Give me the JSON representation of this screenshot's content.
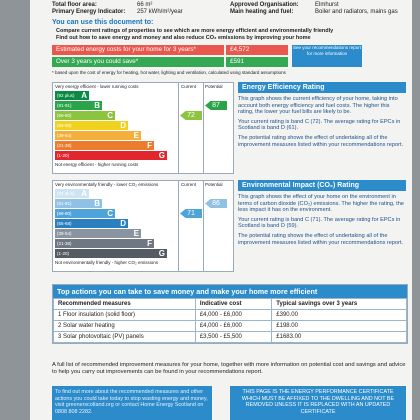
{
  "header": {
    "items": [
      {
        "label": "Total floor area:",
        "value": "66 m²"
      },
      {
        "label": "Primary Energy Indicator:",
        "value": "257 kWh/m²/year"
      },
      {
        "label": "Approved Organisation:",
        "value": "Elmhurst"
      },
      {
        "label": "Main heating and fuel:",
        "value": "Boiler and radiators, mains gas"
      }
    ]
  },
  "use_document": {
    "title": "You can use this document to:",
    "items": [
      "Compare current ratings of properties to see which are more energy efficient and environmentally friendly",
      "Find out how to save energy and money and also reduce CO₂ emissions by improving your home"
    ]
  },
  "costs": {
    "rows": [
      {
        "label": "Estimated energy costs for your home for 3 years*",
        "value": "£4,572",
        "note": "See your recommendations report for more information"
      },
      {
        "label": "Over 3 years you could save*",
        "value": "£591"
      }
    ],
    "footnote": "* based upon the cost of energy for heating, hot water, lighting and ventilation, calculated using standard assumptions"
  },
  "efficiency": {
    "chart": {
      "top": "Very energy efficient - lower running costs",
      "bottom": "Not energy efficient - higher running costs",
      "current_label": "Current",
      "potential_label": "Potential",
      "current": 72,
      "potential": 87,
      "bands": [
        {
          "range": "(92 plus)",
          "letter": "A",
          "color": "#0b8a45"
        },
        {
          "range": "(81-91)",
          "letter": "B",
          "color": "#2aa44a"
        },
        {
          "range": "(69-80)",
          "letter": "C",
          "color": "#8cc43f"
        },
        {
          "range": "(55-68)",
          "letter": "D",
          "color": "#f0d21e"
        },
        {
          "range": "(39-54)",
          "letter": "E",
          "color": "#f4ae3a"
        },
        {
          "range": "(21-38)",
          "letter": "F",
          "color": "#ec7c2d"
        },
        {
          "range": "(1-20)",
          "letter": "G",
          "color": "#e1262d"
        }
      ]
    },
    "title": "Energy Efficiency Rating",
    "paragraphs": [
      "This graph shows the current efficiency of your home, taking into account both energy efficiency and fuel costs. The higher this rating, the lower your fuel bills are likely to be.",
      "Your current rating is band C (72). The average rating for EPCs in Scotland is band D (61).",
      "The potential rating shows the effect of undertaking all of the improvement measures listed within your recommendations report."
    ]
  },
  "impact": {
    "chart": {
      "top": "Very environmentally friendly - lower CO₂ emissions",
      "bottom": "Not environmentally friendly - higher CO₂ emissions",
      "current_label": "Current",
      "potential_label": "Potential",
      "current": 71,
      "potential": 86,
      "bands": [
        {
          "range": "(92 plus)",
          "letter": "A",
          "color": "#cfe3f2"
        },
        {
          "range": "(81-91)",
          "letter": "B",
          "color": "#8fc1e4"
        },
        {
          "range": "(69-80)",
          "letter": "C",
          "color": "#4ea3d8"
        },
        {
          "range": "(55-68)",
          "letter": "D",
          "color": "#2a7fbf"
        },
        {
          "range": "(39-54)",
          "letter": "E",
          "color": "#8a94a0"
        },
        {
          "range": "(21-38)",
          "letter": "F",
          "color": "#6f7782"
        },
        {
          "range": "(1-20)",
          "letter": "G",
          "color": "#555b63"
        }
      ]
    },
    "title": "Environmental Impact (CO₂) Rating",
    "paragraphs": [
      "This graph shows the effect of your home on the environment in terms of carbon dioxide (CO₂) emissions. The higher the rating, the less impact it has on the environment.",
      "Your current rating is band C (71). The average rating for EPCs in Scotland is band D (59).",
      "The potential rating shows the effect of undertaking all of the improvement measures listed within your recommendations report."
    ]
  },
  "actions": {
    "title": "Top actions you can take to save money and make your home more efficient",
    "headers": [
      "Recommended measures",
      "Indicative cost",
      "Typical savings over 3 years"
    ],
    "rows": [
      [
        "1 Floor insulation (solid floor)",
        "£4,000 - £6,000",
        "£390.00"
      ],
      [
        "2 Solar water heating",
        "£4,000 - £6,000",
        "£198.00"
      ],
      [
        "3 Solar photovoltaic (PV) panels",
        "£3,500 - £5,500",
        "£1683.00"
      ]
    ]
  },
  "footer": {
    "text": "A full list of recommended improvement measures for your home, together with more information on potential cost and savings and advice to help you carry out improvements can be found in your recommendations report.",
    "advice": "To find out more about the recommended measures and other actions you could take today to stop wasting energy and money, visit greenerscotland.org or contact Home Energy Scotland on 0808 808 2282.",
    "notice": "THIS PAGE IS THE ENERGY PERFORMANCE CERTIFICATE WHICH MUST BE AFFIXED TO THE DWELLING AND NOT BE REMOVED UNLESS IT IS REPLACED WITH AN UPDATED CERTIFICATE"
  }
}
